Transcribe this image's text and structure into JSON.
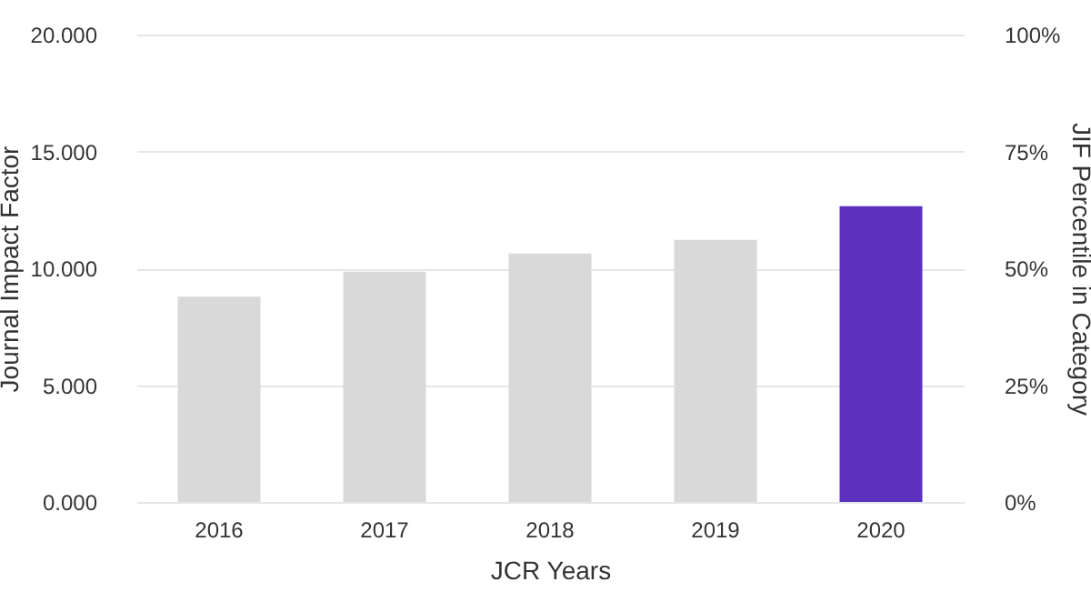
{
  "chart_data": {
    "type": "bar",
    "xlabel": "JCR Years",
    "ylabel": "Journal Impact Factor",
    "y2label": "JIF Percentile in Category",
    "categories": [
      "2016",
      "2017",
      "2018",
      "2019",
      "2020"
    ],
    "values": [
      8.78,
      9.85,
      10.63,
      11.22,
      12.66
    ],
    "colors": [
      "#d9d9d9",
      "#d9d9d9",
      "#d9d9d9",
      "#d9d9d9",
      "#5c31bd"
    ],
    "ylim": [
      0,
      20
    ],
    "yticks": [
      {
        "value": 0,
        "label": "0.000"
      },
      {
        "value": 5,
        "label": "5.000"
      },
      {
        "value": 10,
        "label": "10.000"
      },
      {
        "value": 15,
        "label": "15.000"
      },
      {
        "value": 20,
        "label": "20.000"
      }
    ],
    "y2lim": [
      0,
      100
    ],
    "y2ticks": [
      {
        "value": 0,
        "label": "0%"
      },
      {
        "value": 25,
        "label": "25%"
      },
      {
        "value": 50,
        "label": "50%"
      },
      {
        "value": 75,
        "label": "75%"
      },
      {
        "value": 100,
        "label": "100%"
      }
    ],
    "grid": "y"
  }
}
